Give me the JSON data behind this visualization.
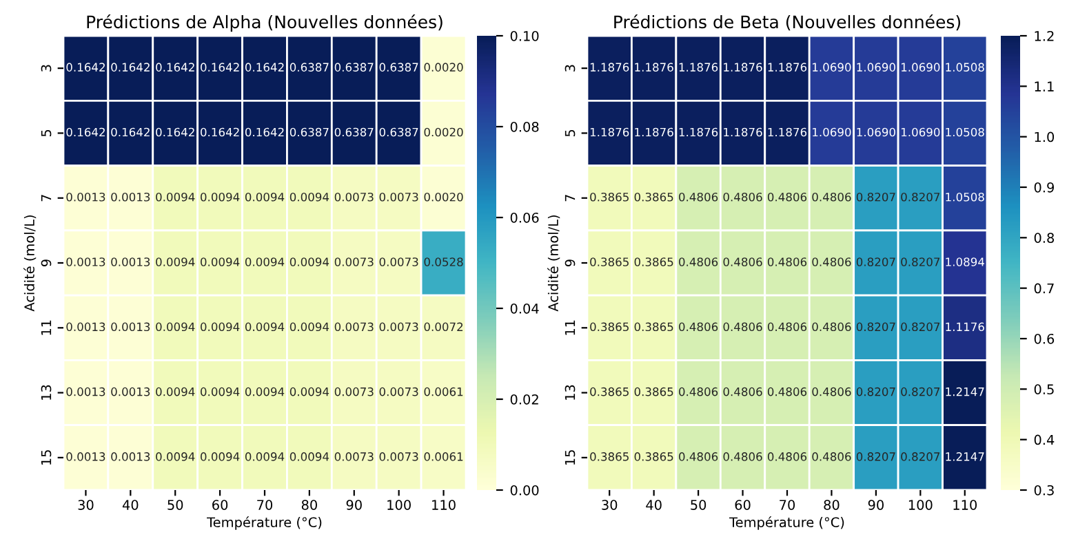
{
  "chart_data": [
    {
      "type": "heatmap",
      "title": "Prédictions de Alpha (Nouvelles données)",
      "xlabel": "Température (°C)",
      "ylabel": "Acidité (mol/L)",
      "categories": [
        "30",
        "40",
        "50",
        "60",
        "70",
        "80",
        "90",
        "100",
        "110"
      ],
      "y_categories": [
        "3",
        "5",
        "7",
        "9",
        "11",
        "13",
        "15"
      ],
      "cells": [
        [
          0.1642,
          0.1642,
          0.1642,
          0.1642,
          0.1642,
          0.6387,
          0.6387,
          0.6387,
          0.002
        ],
        [
          0.1642,
          0.1642,
          0.1642,
          0.1642,
          0.1642,
          0.6387,
          0.6387,
          0.6387,
          0.002
        ],
        [
          0.0013,
          0.0013,
          0.0094,
          0.0094,
          0.0094,
          0.0094,
          0.0073,
          0.0073,
          0.002
        ],
        [
          0.0013,
          0.0013,
          0.0094,
          0.0094,
          0.0094,
          0.0094,
          0.0073,
          0.0073,
          0.0528
        ],
        [
          0.0013,
          0.0013,
          0.0094,
          0.0094,
          0.0094,
          0.0094,
          0.0073,
          0.0073,
          0.0072
        ],
        [
          0.0013,
          0.0013,
          0.0094,
          0.0094,
          0.0094,
          0.0094,
          0.0073,
          0.0073,
          0.0061
        ],
        [
          0.0013,
          0.0013,
          0.0094,
          0.0094,
          0.0094,
          0.0094,
          0.0073,
          0.0073,
          0.0061
        ]
      ],
      "clim": [
        0,
        0.1
      ],
      "cell_labels": [
        [
          "0.1642",
          "0.1642",
          "0.1642",
          "0.1642",
          "0.1642",
          "0.6387",
          "0.6387",
          "0.6387",
          "0.0020"
        ],
        [
          "0.1642",
          "0.1642",
          "0.1642",
          "0.1642",
          "0.1642",
          "0.6387",
          "0.6387",
          "0.6387",
          "0.0020"
        ],
        [
          "0.0013",
          "0.0013",
          "0.0094",
          "0.0094",
          "0.0094",
          "0.0094",
          "0.0073",
          "0.0073",
          "0.0020"
        ],
        [
          "0.0013",
          "0.0013",
          "0.0094",
          "0.0094",
          "0.0094",
          "0.0094",
          "0.0073",
          "0.0073",
          "0.0528"
        ],
        [
          "0.0013",
          "0.0013",
          "0.0094",
          "0.0094",
          "0.0094",
          "0.0094",
          "0.0073",
          "0.0073",
          "0.0072"
        ],
        [
          "0.0013",
          "0.0013",
          "0.0094",
          "0.0094",
          "0.0094",
          "0.0094",
          "0.0073",
          "0.0073",
          "0.0061"
        ],
        [
          "0.0013",
          "0.0013",
          "0.0094",
          "0.0094",
          "0.0094",
          "0.0094",
          "0.0073",
          "0.0073",
          "0.0061"
        ]
      ],
      "cticks": [
        {
          "value": 0,
          "label": "0.00"
        },
        {
          "value": 0.02,
          "label": "0.02"
        },
        {
          "value": 0.04,
          "label": "0.04"
        },
        {
          "value": 0.06,
          "label": "0.06"
        },
        {
          "value": 0.08,
          "label": "0.08"
        },
        {
          "value": 0.1,
          "label": "0.10"
        }
      ],
      "data_labels": true
    },
    {
      "type": "heatmap",
      "title": "Prédictions de Beta (Nouvelles données)",
      "xlabel": "Température (°C)",
      "ylabel": "Acidité (mol/L)",
      "categories": [
        "30",
        "40",
        "50",
        "60",
        "70",
        "80",
        "90",
        "100",
        "110"
      ],
      "y_categories": [
        "3",
        "5",
        "7",
        "9",
        "11",
        "13",
        "15"
      ],
      "cells": [
        [
          1.1876,
          1.1876,
          1.1876,
          1.1876,
          1.1876,
          1.069,
          1.069,
          1.069,
          1.0508
        ],
        [
          1.1876,
          1.1876,
          1.1876,
          1.1876,
          1.1876,
          1.069,
          1.069,
          1.069,
          1.0508
        ],
        [
          0.3865,
          0.3865,
          0.4806,
          0.4806,
          0.4806,
          0.4806,
          0.8207,
          0.8207,
          1.0508
        ],
        [
          0.3865,
          0.3865,
          0.4806,
          0.4806,
          0.4806,
          0.4806,
          0.8207,
          0.8207,
          1.0894
        ],
        [
          0.3865,
          0.3865,
          0.4806,
          0.4806,
          0.4806,
          0.4806,
          0.8207,
          0.8207,
          1.1176
        ],
        [
          0.3865,
          0.3865,
          0.4806,
          0.4806,
          0.4806,
          0.4806,
          0.8207,
          0.8207,
          1.2147
        ],
        [
          0.3865,
          0.3865,
          0.4806,
          0.4806,
          0.4806,
          0.4806,
          0.8207,
          0.8207,
          1.2147
        ]
      ],
      "clim": [
        0.3,
        1.2
      ],
      "cticks": [
        0.3,
        0.4,
        0.5,
        0.6,
        0.7,
        0.8,
        0.9,
        {
          "value": 1,
          "label": "1.0"
        },
        1.1,
        1.2
      ],
      "cell_labels": [
        [
          "1.1876",
          "1.1876",
          "1.1876",
          "1.1876",
          "1.1876",
          "1.0690",
          "1.0690",
          "1.0690",
          "1.0508"
        ],
        [
          "1.1876",
          "1.1876",
          "1.1876",
          "1.1876",
          "1.1876",
          "1.0690",
          "1.0690",
          "1.0690",
          "1.0508"
        ],
        [
          "0.3865",
          "0.3865",
          "0.4806",
          "0.4806",
          "0.4806",
          "0.4806",
          "0.8207",
          "0.8207",
          "1.0508"
        ],
        [
          "0.3865",
          "0.3865",
          "0.4806",
          "0.4806",
          "0.4806",
          "0.4806",
          "0.8207",
          "0.8207",
          "1.0894"
        ],
        [
          "0.3865",
          "0.3865",
          "0.4806",
          "0.4806",
          "0.4806",
          "0.4806",
          "0.8207",
          "0.8207",
          "1.1176"
        ],
        [
          "0.3865",
          "0.3865",
          "0.4806",
          "0.4806",
          "0.4806",
          "0.4806",
          "0.8207",
          "0.8207",
          "1.2147"
        ],
        [
          "0.3865",
          "0.3865",
          "0.4806",
          "0.4806",
          "0.4806",
          "0.4806",
          "0.8207",
          "0.8207",
          "1.2147"
        ]
      ],
      "data_labels": true
    }
  ]
}
